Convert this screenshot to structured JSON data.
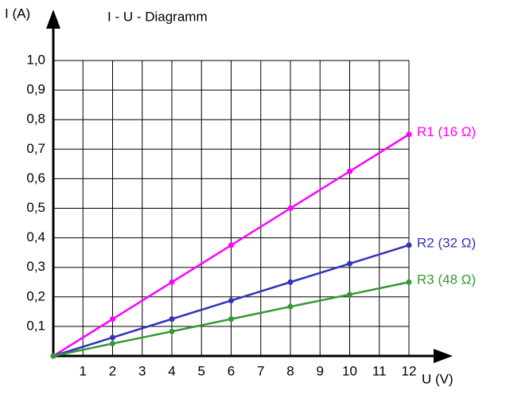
{
  "chart_data": {
    "type": "line",
    "title": "I - U - Diagramm",
    "y_label": "I (A)",
    "x_label": "U (V)",
    "x": [
      0,
      2,
      4,
      6,
      8,
      10,
      12
    ],
    "series": [
      {
        "name": "R1 (16 Ω)",
        "color": "#ff00ff",
        "values": [
          0,
          0.125,
          0.25,
          0.375,
          0.5,
          0.625,
          0.75
        ]
      },
      {
        "name": "R2 (32 Ω)",
        "color": "#3333bb",
        "values": [
          0,
          0.0625,
          0.125,
          0.1875,
          0.25,
          0.3125,
          0.375
        ]
      },
      {
        "name": "R3 (48 Ω)",
        "color": "#339933",
        "values": [
          0,
          0.042,
          0.083,
          0.125,
          0.167,
          0.208,
          0.25
        ]
      }
    ],
    "xlim": [
      0,
      12
    ],
    "ylim": [
      0,
      1.0
    ],
    "xticks": [
      1,
      2,
      3,
      4,
      5,
      6,
      7,
      8,
      9,
      10,
      11,
      12
    ],
    "yticks": [
      {
        "value": 0.1,
        "label": "0,1"
      },
      {
        "value": 0.2,
        "label": "0,2"
      },
      {
        "value": 0.3,
        "label": "0,3"
      },
      {
        "value": 0.4,
        "label": "0,4"
      },
      {
        "value": 0.5,
        "label": "0,5"
      },
      {
        "value": 0.6,
        "label": "0,6"
      },
      {
        "value": 0.7,
        "label": "0,7"
      },
      {
        "value": 0.8,
        "label": "0,8"
      },
      {
        "value": 0.9,
        "label": "0,9"
      },
      {
        "value": 1.0,
        "label": "1,0"
      }
    ],
    "grid": true
  }
}
